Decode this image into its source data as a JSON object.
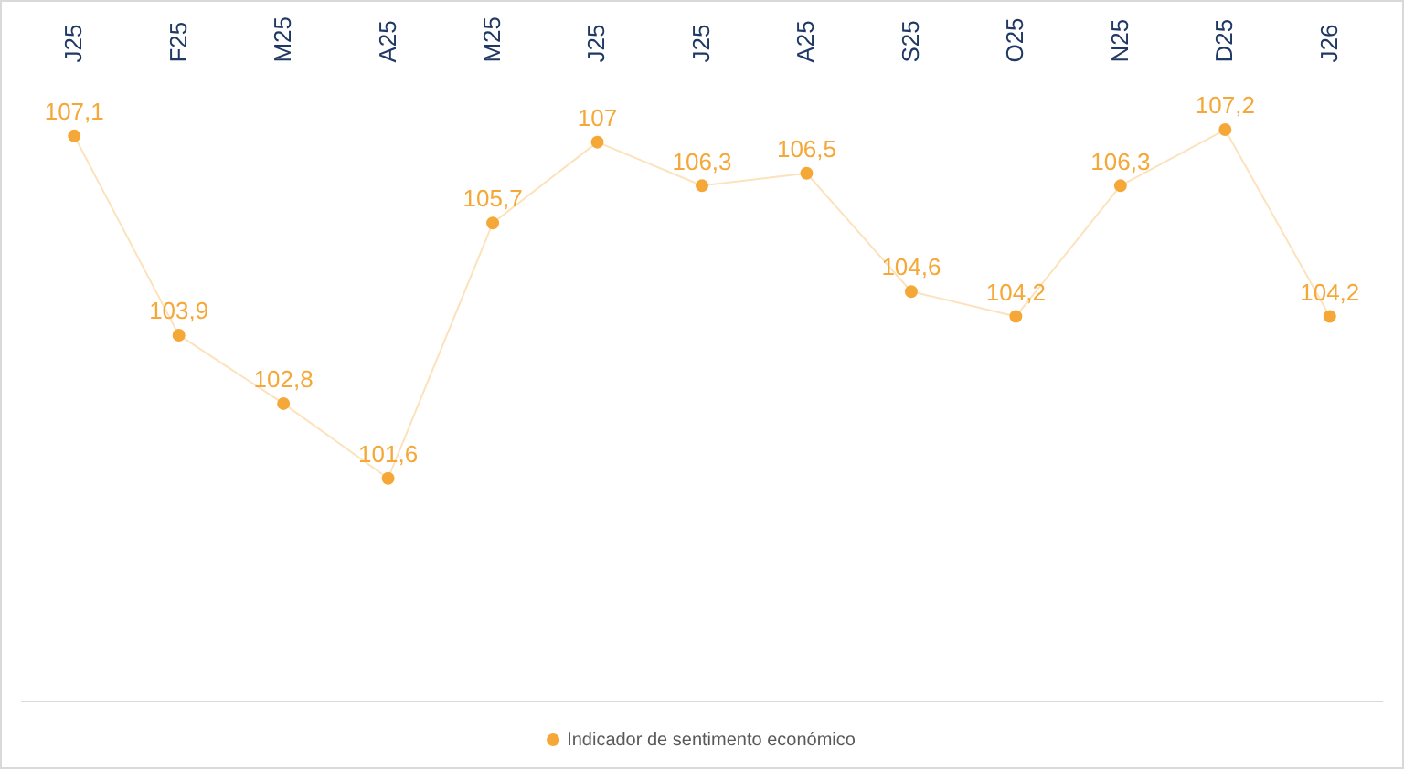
{
  "chart_data": {
    "type": "line",
    "categories": [
      "J25",
      "F25",
      "M25",
      "A25",
      "M25",
      "J25",
      "J25",
      "A25",
      "S25",
      "O25",
      "N25",
      "D25",
      "J26"
    ],
    "series": [
      {
        "name": "Indicador de sentimento económico",
        "color": "#f5a838",
        "values": [
          107.1,
          103.9,
          102.8,
          101.6,
          105.7,
          107,
          106.3,
          106.5,
          104.6,
          104.2,
          106.3,
          107.2,
          104.2
        ],
        "value_labels": [
          "107,1",
          "103,9",
          "102,8",
          "101,6",
          "105,7",
          "107",
          "106,3",
          "106,5",
          "104,6",
          "104,2",
          "106,3",
          "107,2",
          "104,2"
        ]
      }
    ],
    "legend": "bottom",
    "marker": "circle",
    "line_style": "solid",
    "tick_labels": "x"
  }
}
